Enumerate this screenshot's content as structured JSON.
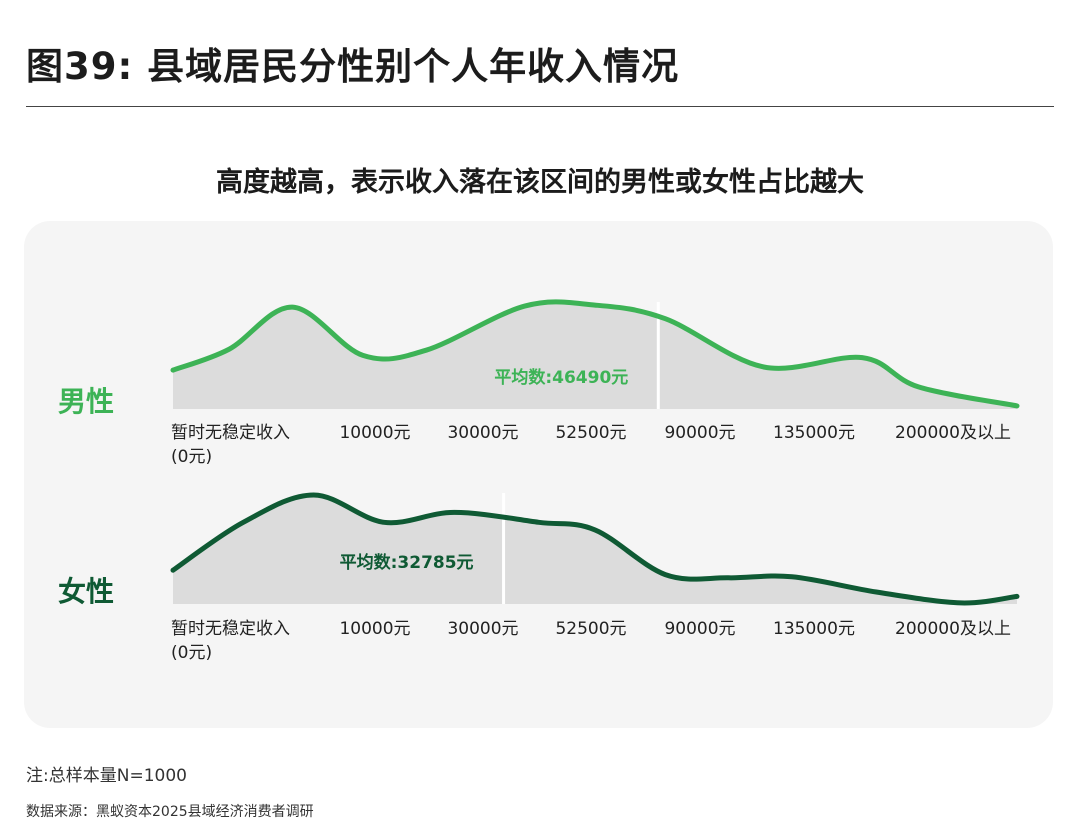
{
  "title": "图39: 县域居民分性别个人年收入情况",
  "subtitle": "高度越高，表示收入落在该区间的男性或女性占比越大",
  "note": "注:总样本量N=1000",
  "source": "数据来源：黑蚁资本2025县域经济消费者调研",
  "colors": {
    "male": "#3db356",
    "female": "#0f5a34",
    "fill": "#dcdcdc",
    "panel": "#f5f5f5"
  },
  "chart_data": [
    {
      "type": "area",
      "series_label": "男性",
      "categories": [
        "暂时无稳定收入(0元)",
        "10000元",
        "30000元",
        "52500元",
        "90000元",
        "135000元",
        "200000及以上"
      ],
      "tick_labels": [
        [
          "暂时无稳定收入",
          "(0元)"
        ],
        [
          "10000元"
        ],
        [
          "30000元"
        ],
        [
          "52500元"
        ],
        [
          "90000元"
        ],
        [
          "135000元"
        ],
        [
          "200000及以上"
        ]
      ],
      "x": [
        0,
        0.4,
        0.85,
        1.35,
        1.8,
        2.5,
        3.0,
        3.5,
        4.2,
        4.9,
        5.3,
        6.0
      ],
      "y": [
        0.37,
        0.57,
        0.97,
        0.51,
        0.56,
        0.98,
        0.99,
        0.86,
        0.4,
        0.49,
        0.21,
        0.03
      ],
      "mean_label": "平均数:46490元",
      "mean_x": 3.45
    },
    {
      "type": "area",
      "series_label": "女性",
      "categories": [
        "暂时无稳定收入(0元)",
        "10000元",
        "30000元",
        "52500元",
        "90000元",
        "135000元",
        "200000及以上"
      ],
      "tick_labels": [
        [
          "暂时无稳定收入",
          "(0元)"
        ],
        [
          "10000元"
        ],
        [
          "30000元"
        ],
        [
          "52500元"
        ],
        [
          "90000元"
        ],
        [
          "135000元"
        ],
        [
          "200000及以上"
        ]
      ],
      "x": [
        0,
        0.5,
        1.0,
        1.5,
        2.0,
        2.6,
        3.0,
        3.5,
        3.95,
        4.4,
        5.0,
        5.6,
        6.0
      ],
      "y": [
        0.31,
        0.75,
        1.0,
        0.75,
        0.84,
        0.75,
        0.68,
        0.27,
        0.24,
        0.25,
        0.11,
        0.01,
        0.07
      ],
      "mean_label": "平均数:32785元",
      "mean_x": 2.35
    }
  ]
}
